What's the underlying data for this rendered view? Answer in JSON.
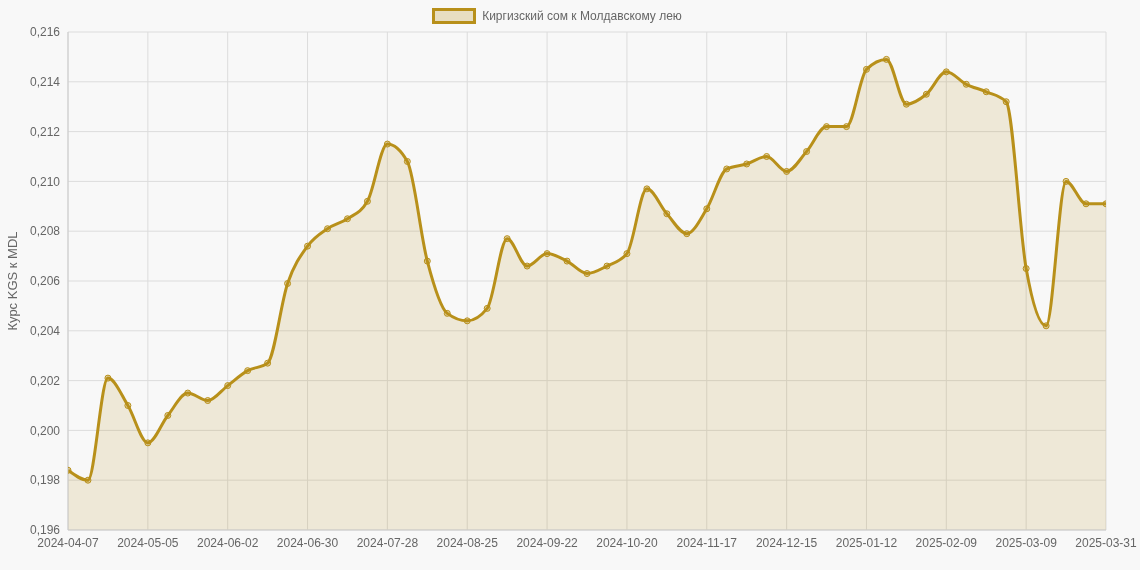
{
  "chart_data": {
    "type": "area",
    "ylabel": "Курс KGS к MDL",
    "categories": [
      "2024-04-07",
      null,
      null,
      null,
      "2024-05-05",
      null,
      null,
      null,
      "2024-06-02",
      null,
      null,
      null,
      "2024-06-30",
      null,
      null,
      null,
      "2024-07-28",
      null,
      null,
      null,
      "2024-08-25",
      null,
      null,
      null,
      "2024-09-22",
      null,
      null,
      null,
      "2024-10-20",
      null,
      null,
      null,
      "2024-11-17",
      null,
      null,
      null,
      "2024-12-15",
      null,
      null,
      null,
      "2025-01-12",
      null,
      null,
      null,
      "2025-02-09",
      null,
      null,
      null,
      "2025-03-09",
      null,
      null,
      null,
      "2025-03-31"
    ],
    "series": [
      {
        "name": "Киргизский сом к Молдавскому лею",
        "color": "#b8901a",
        "values": [
          0.1984,
          0.198,
          0.2021,
          0.201,
          0.1995,
          0.2006,
          0.2015,
          0.2012,
          0.2018,
          0.2024,
          0.2027,
          0.2059,
          0.2074,
          0.2081,
          0.2085,
          0.2092,
          0.2115,
          0.2108,
          0.2068,
          0.2047,
          0.2044,
          0.2049,
          0.2077,
          0.2066,
          0.2071,
          0.2068,
          0.2063,
          0.2066,
          0.2071,
          0.2097,
          0.2087,
          0.2079,
          0.2089,
          0.2105,
          0.2107,
          0.211,
          0.2104,
          0.2112,
          0.2122,
          0.2122,
          0.2145,
          0.2149,
          0.2131,
          0.2135,
          0.2144,
          0.2139,
          0.2136,
          0.2132,
          0.2065,
          0.2042,
          0.21,
          0.2091,
          0.2091
        ]
      }
    ],
    "ylim": [
      0.196,
      0.216
    ],
    "yticks": [
      {
        "value": 0.196,
        "label": "0,196"
      },
      {
        "value": 0.198,
        "label": "0,198"
      },
      {
        "value": 0.2,
        "label": "0,200"
      },
      {
        "value": 0.202,
        "label": "0,202"
      },
      {
        "value": 0.204,
        "label": "0,204"
      },
      {
        "value": 0.206,
        "label": "0,206"
      },
      {
        "value": 0.208,
        "label": "0,208"
      },
      {
        "value": 0.21,
        "label": "0,210"
      },
      {
        "value": 0.212,
        "label": "0,212"
      },
      {
        "value": 0.214,
        "label": "0,214"
      },
      {
        "value": 0.216,
        "label": "0,216"
      }
    ],
    "grid": true,
    "legend": "top",
    "marker": "circle",
    "line_style": "solid"
  }
}
